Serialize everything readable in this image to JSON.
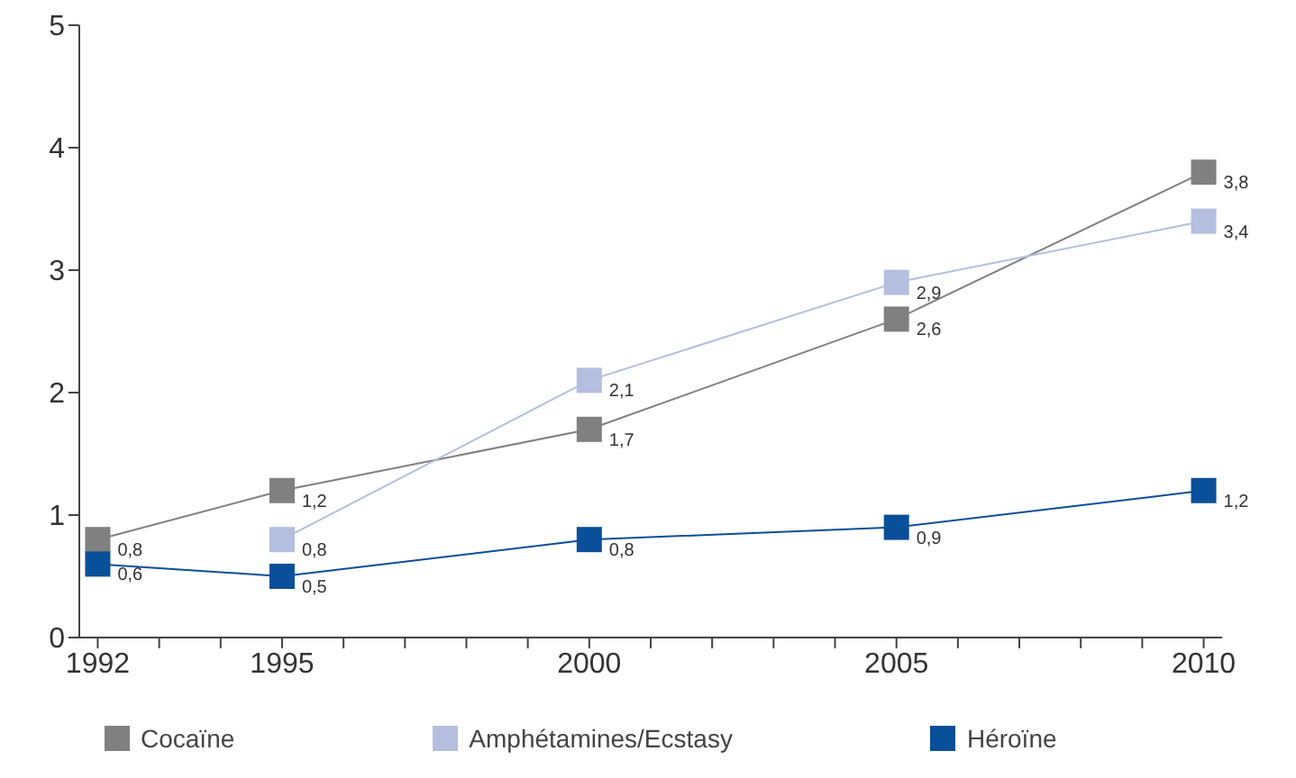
{
  "chart_data": {
    "type": "line",
    "x": [
      1992,
      1995,
      2000,
      2005,
      2010
    ],
    "xlim": [
      1991.7,
      2010.3
    ],
    "xticks": [
      1992,
      {
        "value": 1993,
        "label": null
      },
      {
        "value": 1994,
        "label": null
      },
      1995,
      {
        "value": 1996,
        "label": null
      },
      {
        "value": 1997,
        "label": null
      },
      {
        "value": 1998,
        "label": null
      },
      {
        "value": 1999,
        "label": null
      },
      2000,
      {
        "value": 2001,
        "label": null
      },
      {
        "value": 2002,
        "label": null
      },
      {
        "value": 2003,
        "label": null
      },
      {
        "value": 2004,
        "label": null
      },
      2005,
      {
        "value": 2006,
        "label": null
      },
      {
        "value": 2007,
        "label": null
      },
      {
        "value": 2008,
        "label": null
      },
      {
        "value": 2009,
        "label": null
      },
      2010
    ],
    "ylim": [
      0,
      5
    ],
    "yticks": [
      0,
      1,
      2,
      3,
      4,
      5
    ],
    "series": [
      {
        "name": "Cocaïne",
        "color": "#808080",
        "values": [
          0.8,
          1.2,
          1.7,
          2.6,
          3.8
        ],
        "value_labels": [
          "0,8",
          "1,2",
          "1,7",
          "2,6",
          "3,8"
        ]
      },
      {
        "name": "Amphétamines/Ecstasy",
        "color": "#b4bedf",
        "values": [
          null,
          0.8,
          2.1,
          2.9,
          3.4
        ],
        "value_labels": [
          null,
          "0,8",
          "2,1",
          "2,9",
          "3,4"
        ]
      },
      {
        "name": "Héroïne",
        "color": "#0a4f9a",
        "values": [
          0.6,
          0.5,
          0.8,
          0.9,
          1.2
        ],
        "value_labels": [
          "0,6",
          "0,5",
          "0,8",
          "0,9",
          "1,2"
        ]
      }
    ],
    "marker": "square",
    "line_style": "solid",
    "grid": false,
    "legend": "bottom"
  }
}
